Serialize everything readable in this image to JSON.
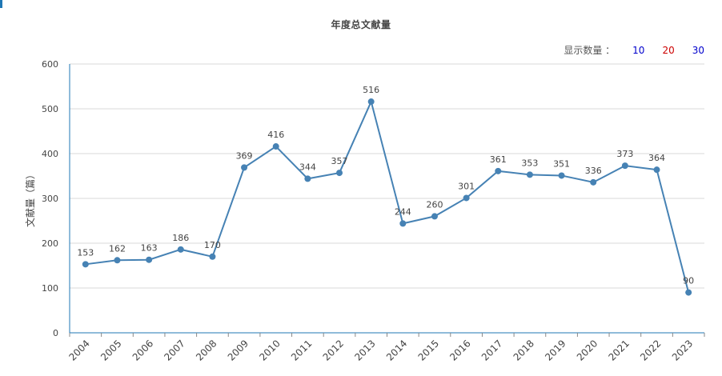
{
  "title": "年度总文献量",
  "count_control": {
    "label": "显示数量 ：",
    "options": [
      {
        "label": "10",
        "color": "#0000cc"
      },
      {
        "label": "20",
        "color": "#cc0000"
      },
      {
        "label": "30",
        "color": "#0000cc"
      }
    ]
  },
  "chart_data": {
    "type": "line",
    "title": "年度总文献量",
    "xlabel": "",
    "ylabel": "文献量（篇）",
    "ylim": [
      0,
      600
    ],
    "yticks": [
      0,
      100,
      200,
      300,
      400,
      500,
      600
    ],
    "categories": [
      "2004",
      "2005",
      "2006",
      "2007",
      "2008",
      "2009",
      "2010",
      "2011",
      "2012",
      "2013",
      "2014",
      "2015",
      "2016",
      "2017",
      "2018",
      "2019",
      "2020",
      "2021",
      "2022",
      "2023"
    ],
    "series": [
      {
        "values": [
          153,
          162,
          163,
          186,
          170,
          369,
          416,
          344,
          357,
          516,
          244,
          260,
          301,
          361,
          353,
          351,
          336,
          373,
          364,
          90
        ],
        "color": "#4682b4"
      }
    ],
    "grid": true
  }
}
